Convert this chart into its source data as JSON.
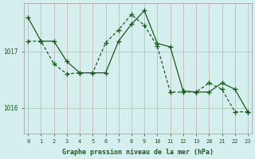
{
  "background_color": "#d5eeee",
  "plot_bg_color": "#d5eeee",
  "line_color": "#1a5c1a",
  "marker_color": "#1a5c1a",
  "grid_color_v": "#c8b8b8",
  "grid_color_h": "#b0ccb0",
  "xlabel": "Graphe pression niveau de la mer (hPa)",
  "xlabel_color": "#1a5c1a",
  "tick_color": "#1a5c1a",
  "yticks": [
    1016,
    1017
  ],
  "xtick_labels": [
    "0",
    "1",
    "2",
    "3",
    "4",
    "5",
    "6",
    "7",
    "8",
    "9",
    "10",
    "11",
    "12",
    "13",
    "20",
    "21",
    "22",
    "23"
  ],
  "xtick_pos": [
    0,
    1,
    2,
    3,
    4,
    5,
    6,
    7,
    8,
    9,
    10,
    11,
    12,
    13,
    14,
    15,
    16,
    17
  ],
  "ylim": [
    1015.55,
    1017.85
  ],
  "xlim": [
    -0.3,
    17.3
  ],
  "series1_x": [
    0,
    1,
    2,
    3,
    4,
    5,
    6,
    7,
    8,
    9,
    10,
    11,
    12,
    13,
    14,
    15,
    16,
    17
  ],
  "series1_y": [
    1017.6,
    1017.18,
    1017.18,
    1016.82,
    1016.62,
    1016.62,
    1016.62,
    1017.18,
    1017.48,
    1017.72,
    1017.14,
    1017.08,
    1016.3,
    1016.28,
    1016.28,
    1016.44,
    1016.33,
    1015.93
  ],
  "series2_x": [
    0,
    1,
    2,
    3,
    4,
    5,
    6,
    7,
    8,
    9,
    10,
    11,
    12,
    13,
    14,
    15,
    16,
    17
  ],
  "series2_y": [
    1017.18,
    1017.18,
    1016.78,
    1016.6,
    1016.62,
    1016.62,
    1017.15,
    1017.38,
    1017.65,
    1017.46,
    1017.09,
    1016.28,
    1016.28,
    1016.28,
    1016.44,
    1016.33,
    1015.93,
    1015.93
  ],
  "figsize": [
    3.2,
    2.0
  ],
  "dpi": 100
}
